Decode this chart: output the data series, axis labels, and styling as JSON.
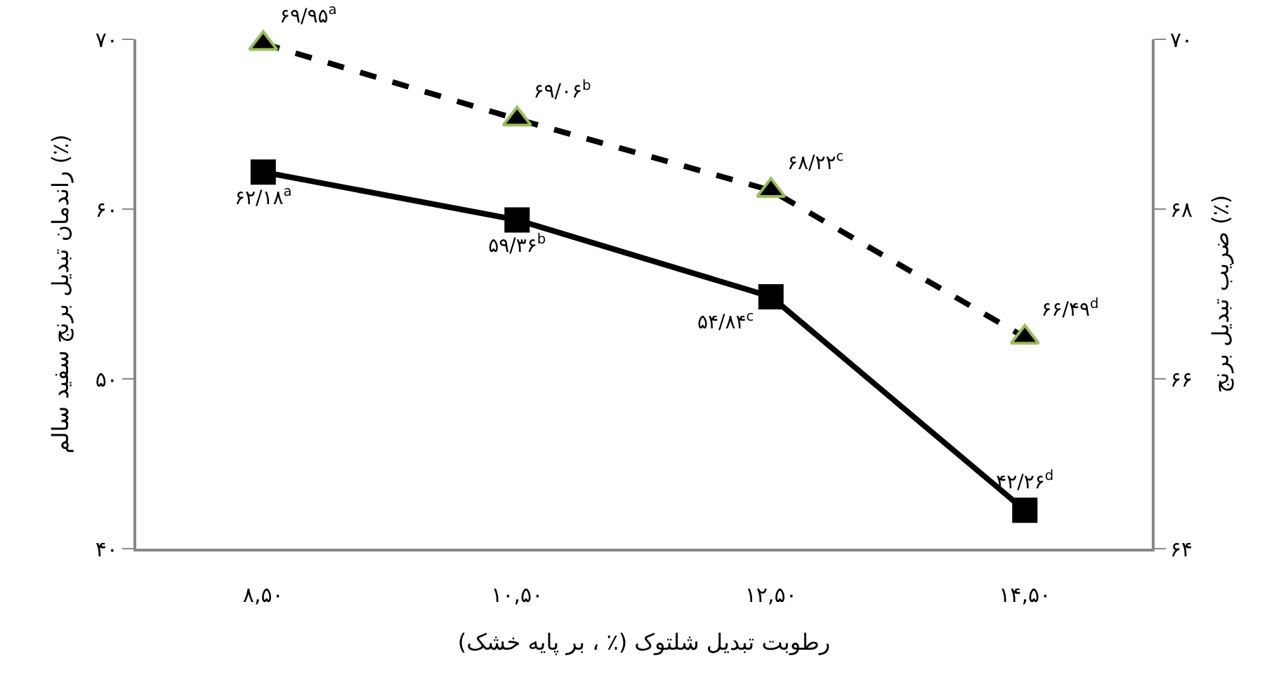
{
  "chart_data": {
    "type": "line",
    "xlabel": "رطوبت تبدیل شلتوک (٪ ، بر پایه خشک)",
    "ylabel": "راندمان تبدیل برنج سفید سالم (٪)",
    "y2label": "ضریب تبدیل برنج (٪)",
    "categories": [
      "۸,۵۰",
      "۱۰,۵۰",
      "۱۲,۵۰",
      "۱۴,۵۰"
    ],
    "series": [
      {
        "color": "#000000",
        "marker": "square",
        "line_style": "solid",
        "values": [
          62.18,
          59.36,
          54.84,
          42.26
        ],
        "value_labels": [
          "۶۲/۱۸$^{a}$",
          "۵۹/۳۶$^{b}$",
          "۵۴/۸۴$^{c}$",
          "۴۲/۲۶$^{d}$"
        ]
      },
      {
        "color": "#000000",
        "marker": "triangle",
        "line_style": "dashed",
        "axis": "y2",
        "values": [
          69.95,
          69.06,
          68.22,
          66.49
        ],
        "value_labels": [
          "۶۹/۹۵$^{a}$",
          "۶۹/۰۶$^{b}$",
          "۶۸/۲۲$^{c}$",
          "۶۶/۴۹$^{d}$"
        ]
      }
    ],
    "ylim": [
      40,
      70
    ],
    "yticks": [
      {
        "value": 40,
        "label": "۴۰"
      },
      {
        "value": 50,
        "label": "۵۰"
      },
      {
        "value": 60,
        "label": "۶۰"
      },
      {
        "value": 70,
        "label": "۷۰"
      }
    ],
    "y2lim": [
      64,
      70
    ],
    "y2ticks": [
      {
        "value": 64,
        "label": "۶۴"
      },
      {
        "value": 66,
        "label": "۶۶"
      },
      {
        "value": 68,
        "label": "۶۸"
      },
      {
        "value": 70,
        "label": "۷۰"
      }
    ]
  }
}
